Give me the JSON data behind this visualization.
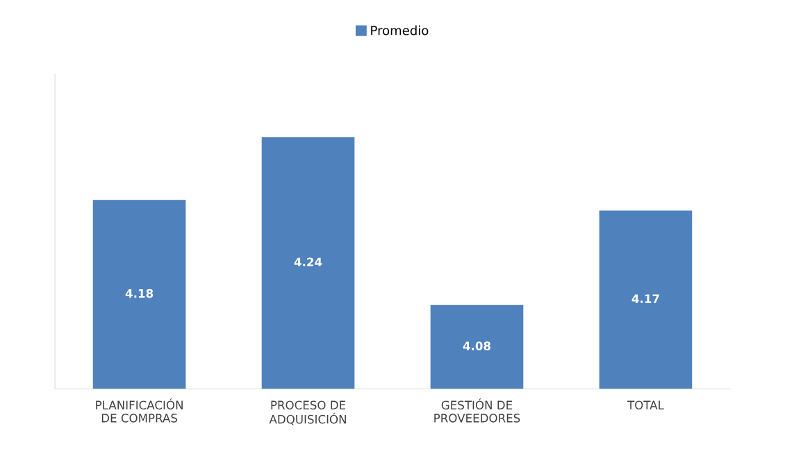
{
  "chart_data": {
    "type": "bar",
    "categories": [
      "PLANIFICACIÓN\nDE COMPRAS",
      "PROCESO DE\nADQUISICIÓN",
      "GESTIÓN DE\nPROVEEDORES",
      "TOTAL"
    ],
    "series": [
      {
        "name": "Promedio",
        "color": "#4f81bd",
        "values": [
          4.18,
          4.24,
          4.08,
          4.17
        ]
      }
    ],
    "ylim": [
      4.0,
      4.3
    ],
    "tick_labels": "x",
    "data_labels": true,
    "legend": "top",
    "grid": false
  }
}
